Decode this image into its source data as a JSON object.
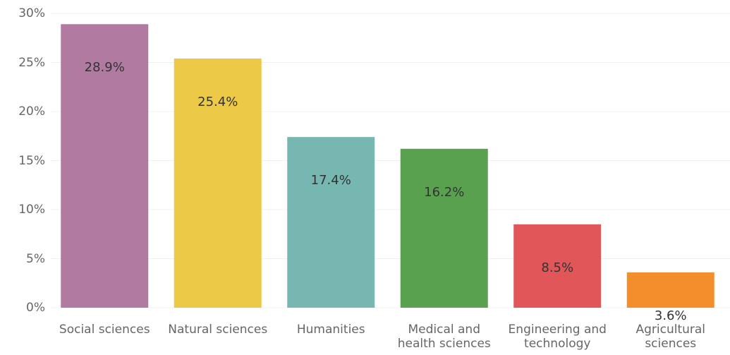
{
  "chart_data": {
    "type": "bar",
    "categories": [
      "Social sciences",
      "Natural sciences",
      "Humanities",
      "Medical and health sciences",
      "Engineering and technology",
      "Agricultural sciences"
    ],
    "values": [
      28.9,
      25.4,
      17.4,
      16.2,
      8.5,
      3.6
    ],
    "value_labels": [
      "28.9%",
      "25.4%",
      "17.4%",
      "16.2%",
      "8.5%",
      "3.6%"
    ],
    "colors": [
      "#b07aa1",
      "#edc948",
      "#76b7b2",
      "#59a14f",
      "#e15759",
      "#f28e2b"
    ],
    "ylim": [
      0,
      30
    ],
    "yticks": [
      {
        "value": 0,
        "label": "0%"
      },
      {
        "value": 5,
        "label": "5%"
      },
      {
        "value": 10,
        "label": "10%"
      },
      {
        "value": 15,
        "label": "15%"
      },
      {
        "value": 20,
        "label": "20%"
      },
      {
        "value": 25,
        "label": "25%"
      },
      {
        "value": 30,
        "label": "30%"
      }
    ],
    "grid": true
  }
}
